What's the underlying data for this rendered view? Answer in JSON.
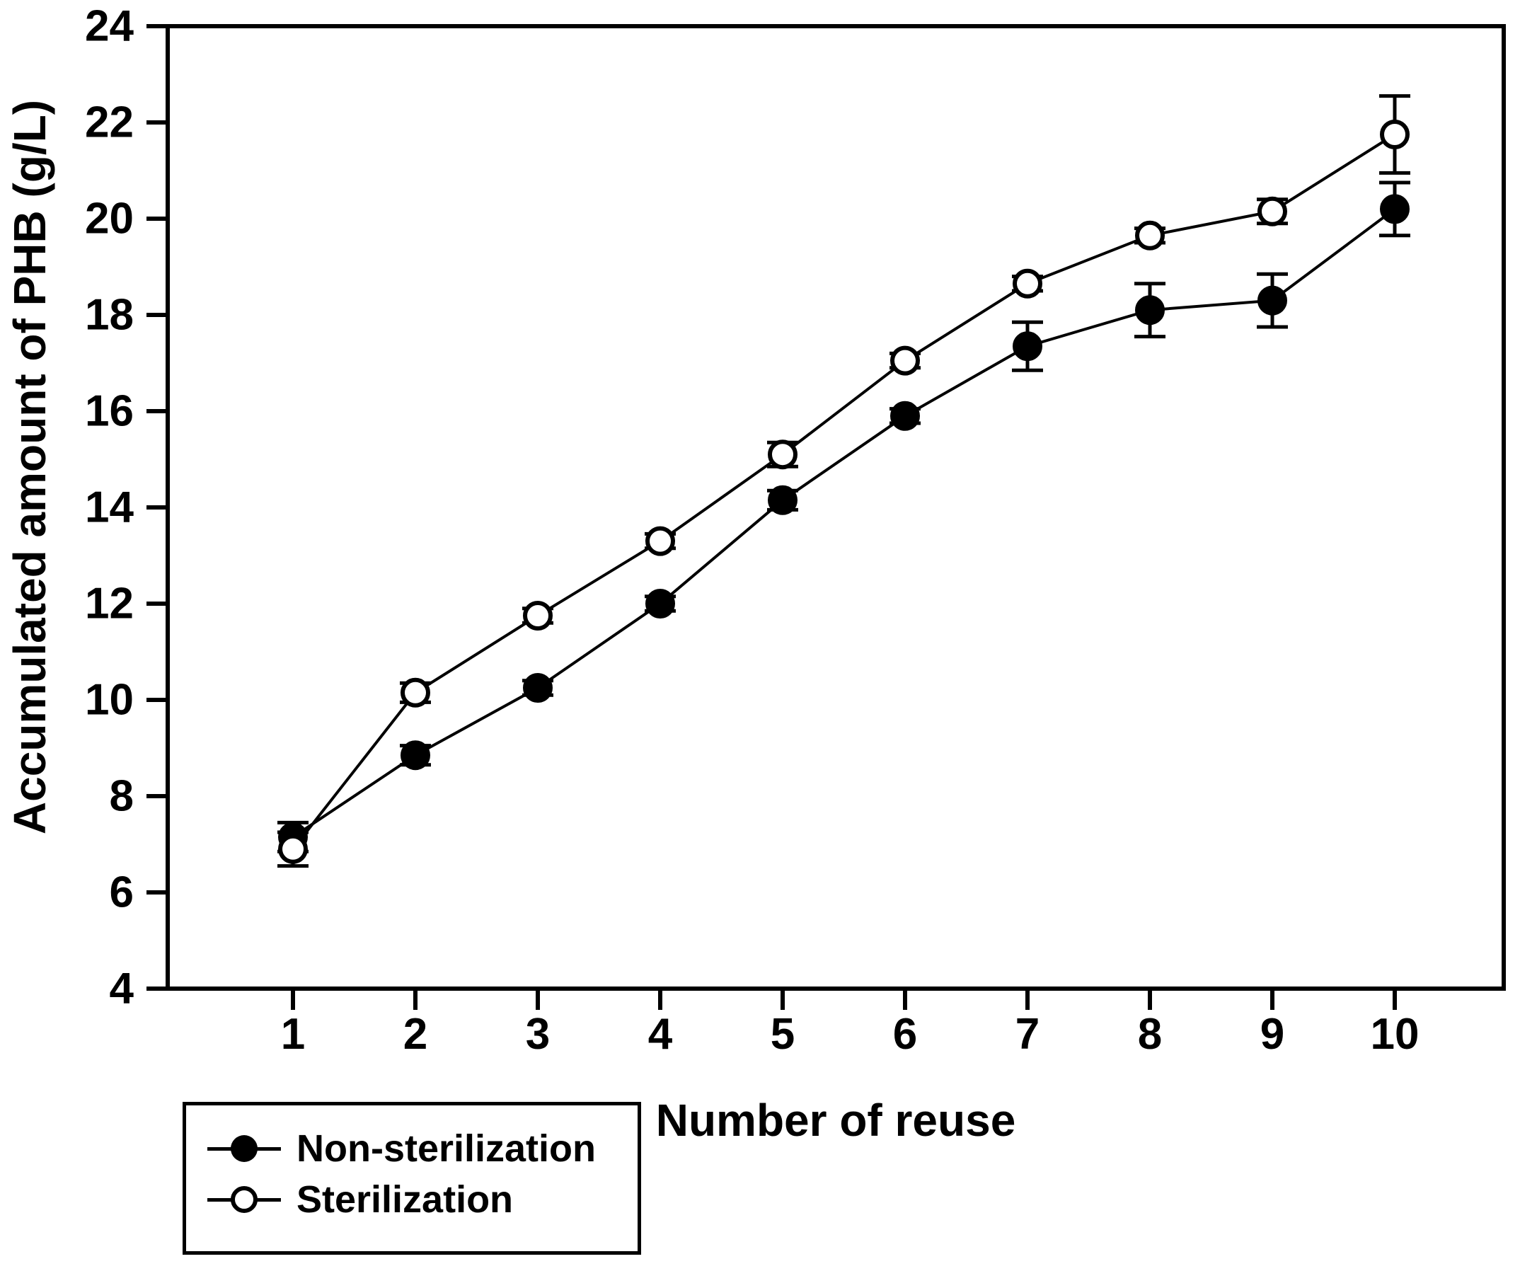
{
  "figure": {
    "background_color": "#ffffff",
    "ink_color": "#000000"
  },
  "chart_data": {
    "type": "line",
    "title": "",
    "xlabel": "Number of reuse",
    "ylabel": "Accumulated amount of PHB (g/L)",
    "x": [
      1,
      2,
      3,
      4,
      5,
      6,
      7,
      8,
      9,
      10
    ],
    "xlim": [
      0,
      10.9
    ],
    "ylim": [
      4,
      24
    ],
    "yticks": [
      4,
      6,
      8,
      10,
      12,
      14,
      16,
      18,
      20,
      22,
      24
    ],
    "grid": "off",
    "frame": "full-box",
    "legend_position": "bottom-left-outside",
    "series": [
      {
        "name": "Non-sterilization",
        "marker": "filled-circle",
        "color": "#000000",
        "values": [
          7.15,
          8.85,
          10.25,
          12.0,
          14.15,
          15.9,
          17.35,
          18.1,
          18.3,
          20.2
        ],
        "errors": [
          0.3,
          0.2,
          0.15,
          0.15,
          0.2,
          0.15,
          0.5,
          0.55,
          0.55,
          0.55
        ]
      },
      {
        "name": "Sterilization",
        "marker": "open-circle",
        "color": "#000000",
        "values": [
          6.9,
          10.15,
          11.75,
          13.3,
          15.1,
          17.05,
          18.65,
          19.65,
          20.15,
          21.75
        ],
        "errors": [
          0.35,
          0.2,
          0.15,
          0.15,
          0.25,
          0.15,
          0.15,
          0.15,
          0.25,
          0.8
        ]
      }
    ]
  }
}
